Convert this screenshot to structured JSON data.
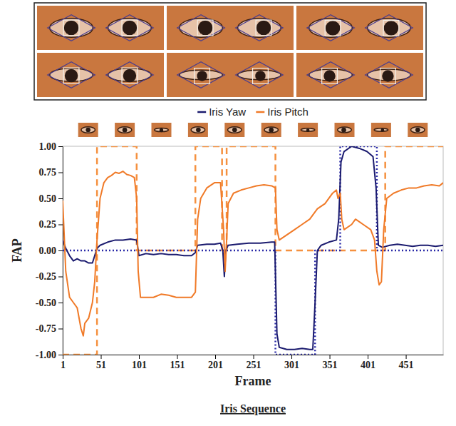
{
  "chart_data": {
    "type": "line",
    "title": "Iris Sequence",
    "x_label": "Frame",
    "y_label": "FAP",
    "xlim": [
      1,
      500
    ],
    "xticks": [
      1,
      51,
      101,
      151,
      201,
      251,
      301,
      351,
      401,
      451
    ],
    "ylim": [
      -1,
      1
    ],
    "yticks": [
      {
        "value": -1,
        "label": "-1.00"
      },
      {
        "value": -0.75,
        "label": "-0.75"
      },
      {
        "value": -0.5,
        "label": "-0.50"
      },
      {
        "value": -0.25,
        "label": "-0.25"
      },
      {
        "value": 0,
        "label": "0.00"
      },
      {
        "value": 0.25,
        "label": "0.25"
      },
      {
        "value": 0.5,
        "label": "0.50"
      },
      {
        "value": 0.75,
        "label": "0.75"
      },
      {
        "value": 1,
        "label": "1.00"
      }
    ],
    "grid": false,
    "legend": "top",
    "series": [
      {
        "name": "Iris Yaw",
        "color": "#1b1b6f",
        "line_style": "solid",
        "x": [
          1,
          5,
          10,
          15,
          20,
          25,
          30,
          35,
          40,
          43,
          46,
          50,
          60,
          70,
          80,
          90,
          98,
          101,
          110,
          120,
          130,
          140,
          150,
          160,
          170,
          175,
          178,
          190,
          200,
          208,
          211,
          213,
          215,
          218,
          230,
          245,
          260,
          275,
          279,
          282,
          285,
          295,
          305,
          315,
          325,
          329,
          332,
          335,
          340,
          350,
          360,
          363,
          366,
          370,
          380,
          390,
          400,
          408,
          412,
          415,
          420,
          430,
          440,
          450,
          460,
          470,
          480,
          490,
          500
        ],
        "values": [
          0.1,
          0.02,
          -0.05,
          -0.1,
          -0.08,
          -0.1,
          -0.1,
          -0.12,
          -0.12,
          -0.05,
          0.02,
          0.05,
          0.08,
          0.1,
          0.1,
          0.11,
          0.1,
          -0.05,
          -0.03,
          -0.04,
          -0.03,
          -0.04,
          -0.04,
          -0.05,
          -0.05,
          -0.02,
          0.05,
          0.06,
          0.06,
          0.07,
          0,
          -0.25,
          0,
          0.05,
          0.06,
          0.07,
          0.07,
          0.08,
          0.08,
          -0.8,
          -0.93,
          -0.95,
          -0.95,
          -0.94,
          -0.95,
          -0.95,
          -0.5,
          0,
          0.05,
          0.08,
          0.1,
          0.3,
          0.85,
          0.95,
          1,
          0.98,
          0.95,
          0.9,
          0.6,
          0.05,
          0.03,
          0.05,
          0.06,
          0.05,
          0.04,
          0.05,
          0.05,
          0.04,
          0.05
        ]
      },
      {
        "name": "Iris Pitch",
        "color": "#f07a28",
        "line_style": "solid",
        "x": [
          1,
          5,
          10,
          15,
          20,
          25,
          28,
          30,
          35,
          40,
          43,
          46,
          50,
          55,
          60,
          65,
          70,
          75,
          80,
          85,
          90,
          95,
          98,
          100,
          103,
          110,
          120,
          130,
          140,
          150,
          160,
          170,
          175,
          178,
          182,
          190,
          200,
          208,
          212,
          214,
          216,
          218,
          225,
          235,
          245,
          255,
          265,
          275,
          280,
          282,
          285,
          295,
          305,
          315,
          325,
          335,
          345,
          355,
          360,
          362,
          365,
          367,
          370,
          380,
          385,
          395,
          405,
          410,
          413,
          416,
          419,
          422,
          426,
          435,
          445,
          455,
          465,
          475,
          485,
          495,
          500
        ],
        "values": [
          0.48,
          -0.2,
          -0.45,
          -0.5,
          -0.55,
          -0.75,
          -0.82,
          -0.7,
          -0.65,
          -0.5,
          -0.3,
          0.1,
          0.5,
          0.65,
          0.7,
          0.72,
          0.75,
          0.74,
          0.76,
          0.73,
          0.72,
          0.7,
          0.5,
          -0.2,
          -0.45,
          -0.45,
          -0.45,
          -0.42,
          -0.43,
          -0.45,
          -0.45,
          -0.45,
          -0.4,
          0.3,
          0.5,
          0.6,
          0.65,
          0.65,
          0.2,
          -0.2,
          0.1,
          0.45,
          0.55,
          0.58,
          0.6,
          0.62,
          0.63,
          0.62,
          0.6,
          0.2,
          0.1,
          0.15,
          0.2,
          0.25,
          0.3,
          0.4,
          0.45,
          0.55,
          0.58,
          0.5,
          0.55,
          0.3,
          0.2,
          0.25,
          0.3,
          0.25,
          0.2,
          0.1,
          -0.2,
          -0.33,
          -0.3,
          0.2,
          0.5,
          0.55,
          0.58,
          0.6,
          0.6,
          0.62,
          0.63,
          0.62,
          0.65
        ]
      },
      {
        "color": "#f5913f",
        "line_style": "dashed",
        "x": [
          1,
          46,
          46,
          98,
          98,
          175,
          175,
          210,
          210,
          216,
          216,
          280,
          280,
          424,
          424,
          500
        ],
        "values": [
          -1,
          -1,
          1,
          1,
          0,
          0,
          1,
          1,
          0,
          0,
          1,
          1,
          0,
          0,
          1,
          1
        ]
      },
      {
        "color": "#2a2aa8",
        "line_style": "dotted",
        "x": [
          1,
          280,
          280,
          332,
          332,
          365,
          365,
          413,
          413,
          500
        ],
        "values": [
          0,
          0,
          -1,
          -1,
          0,
          0,
          1,
          1,
          0,
          0
        ]
      }
    ]
  }
}
